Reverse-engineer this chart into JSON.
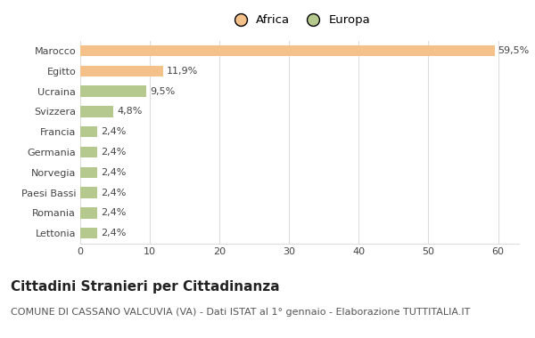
{
  "categories": [
    "Marocco",
    "Egitto",
    "Ucraina",
    "Svizzera",
    "Francia",
    "Germania",
    "Norvegia",
    "Paesi Bassi",
    "Romania",
    "Lettonia"
  ],
  "values": [
    59.5,
    11.9,
    9.5,
    4.8,
    2.4,
    2.4,
    2.4,
    2.4,
    2.4,
    2.4
  ],
  "labels": [
    "59,5%",
    "11,9%",
    "9,5%",
    "4,8%",
    "2,4%",
    "2,4%",
    "2,4%",
    "2,4%",
    "2,4%",
    "2,4%"
  ],
  "colors": [
    "#f5c18a",
    "#f5c18a",
    "#b5c98e",
    "#b5c98e",
    "#b5c98e",
    "#b5c98e",
    "#b5c98e",
    "#b5c98e",
    "#b5c98e",
    "#b5c98e"
  ],
  "legend_labels": [
    "Africa",
    "Europa"
  ],
  "legend_colors": [
    "#f5c18a",
    "#b5c98e"
  ],
  "xlim": [
    0,
    63
  ],
  "xticks": [
    0,
    10,
    20,
    30,
    40,
    50,
    60
  ],
  "title": "Cittadini Stranieri per Cittadinanza",
  "subtitle": "COMUNE DI CASSANO VALCUVIA (VA) - Dati ISTAT al 1° gennaio - Elaborazione TUTTITALIA.IT",
  "title_fontsize": 11,
  "subtitle_fontsize": 8,
  "label_fontsize": 8,
  "tick_fontsize": 8,
  "bar_height": 0.55,
  "background_color": "#ffffff",
  "grid_color": "#dddddd"
}
